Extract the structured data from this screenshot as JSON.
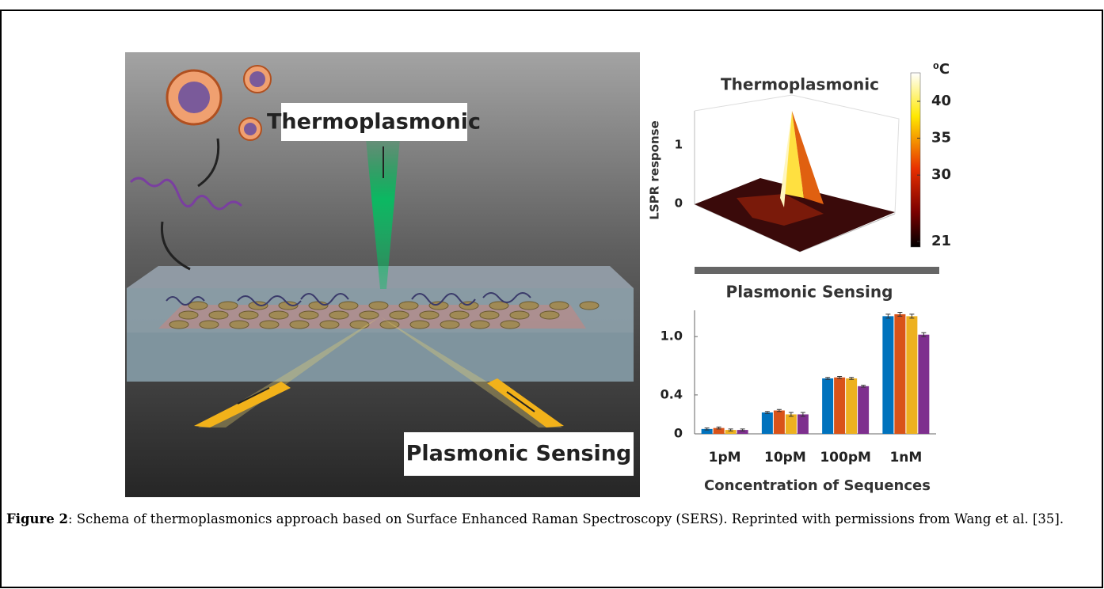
{
  "illustration": {
    "labels": [
      "Thermoplasmonic",
      "Plasmonic Sensing"
    ]
  },
  "thermoplasmonic_plot": {
    "title": "Thermoplasmonic",
    "z_label": "LSPR response",
    "z_ticks": [
      0,
      1
    ],
    "colorbar_unit": "⁰C",
    "colorbar_ticks": [
      21,
      30,
      35,
      40
    ]
  },
  "chart_data": {
    "type": "bar",
    "title": "Plasmonic Sensing",
    "x_label": "Concentration of Sequences",
    "categories": [
      "1pM",
      "10pM",
      "100pM",
      "1nM"
    ],
    "series": [
      {
        "color": "#0072bd",
        "values": [
          0.05,
          0.22,
          0.57,
          1.21
        ],
        "errors": [
          0.01,
          0.01,
          0.01,
          0.02
        ]
      },
      {
        "color": "#d95319",
        "values": [
          0.06,
          0.24,
          0.58,
          1.23
        ],
        "errors": [
          0.01,
          0.01,
          0.01,
          0.02
        ]
      },
      {
        "color": "#edb120",
        "values": [
          0.04,
          0.2,
          0.57,
          1.21
        ],
        "errors": [
          0.01,
          0.02,
          0.01,
          0.02
        ]
      },
      {
        "color": "#7e2f8e",
        "values": [
          0.04,
          0.2,
          0.49,
          1.02
        ],
        "errors": [
          0.01,
          0.02,
          0.01,
          0.02
        ]
      }
    ],
    "ylim": [
      0,
      1.27
    ],
    "yticks": [
      0,
      0.4,
      {
        "value": 1,
        "label": "1.0"
      }
    ]
  },
  "caption": {
    "label": "Figure 2",
    "text": ": Schema of thermoplasmonics approach based on Surface Enhanced Raman Spectroscopy (SERS). Reprinted with permissions from Wang et al. [35]."
  }
}
